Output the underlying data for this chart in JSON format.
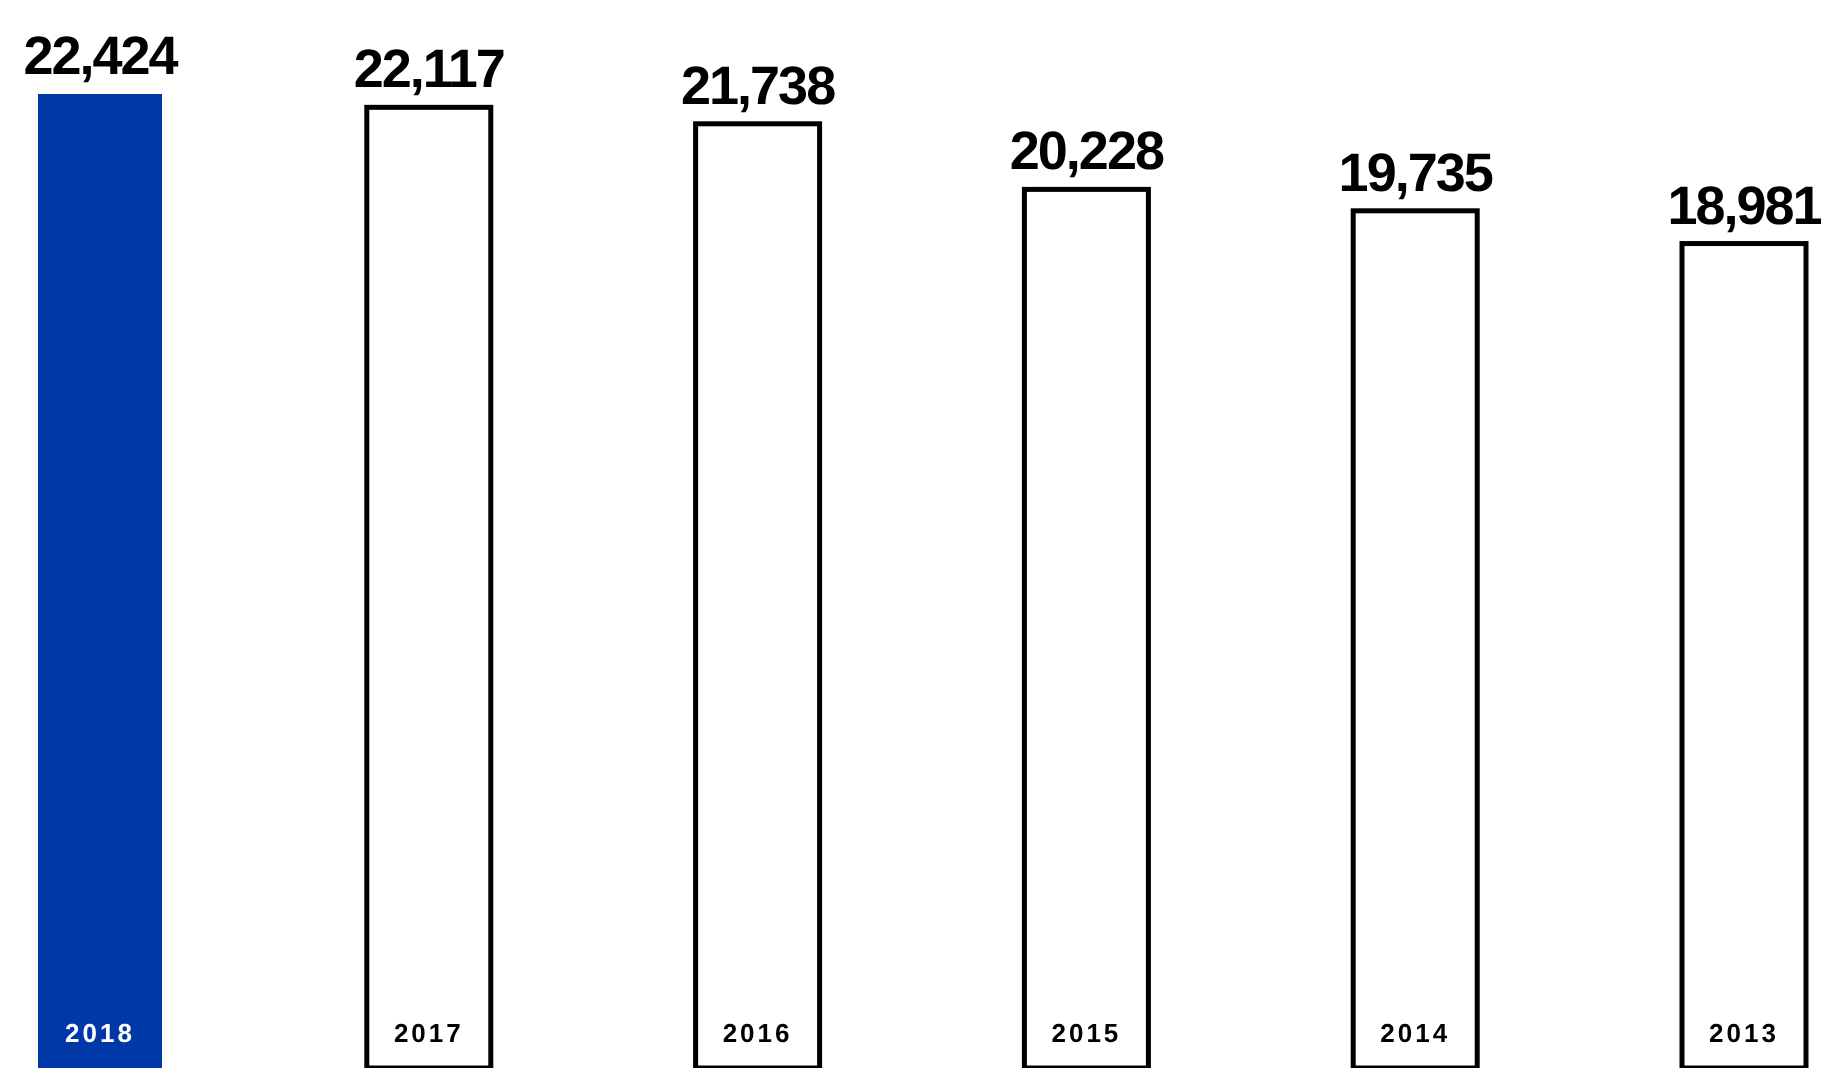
{
  "chart_data": {
    "type": "bar",
    "categories": [
      "2018",
      "2017",
      "2016",
      "2015",
      "2014",
      "2013"
    ],
    "values": [
      22424,
      22117,
      21738,
      20228,
      19735,
      18981
    ],
    "colors": [
      "#0038a8",
      "#ffffff",
      "#ffffff",
      "#ffffff",
      "#ffffff",
      "#ffffff"
    ],
    "value_labels": [
      "22,424",
      "22,117",
      "21,738",
      "20,228",
      "19,735",
      "18,981"
    ]
  }
}
